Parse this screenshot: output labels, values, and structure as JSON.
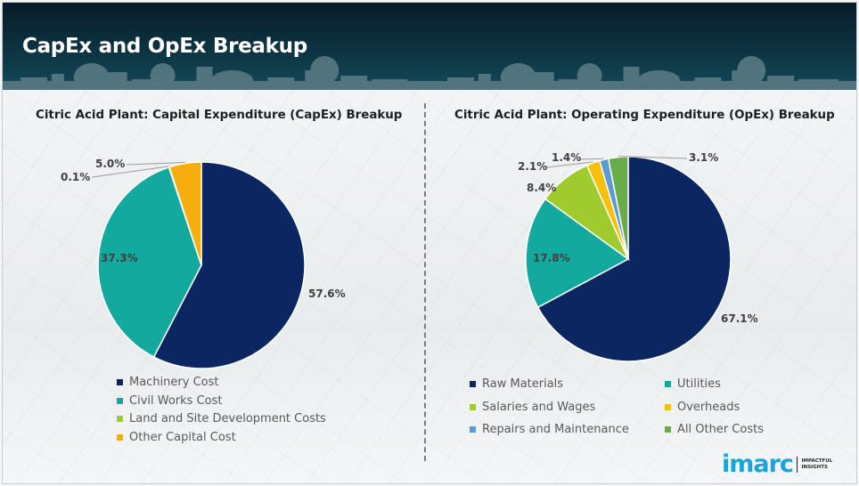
{
  "header": {
    "title": "CapEx and OpEx Breakup"
  },
  "chart_data": [
    {
      "type": "pie",
      "title": "Citric Acid Plant: Capital Expenditure (CapEx) Breakup",
      "start_angle_deg": 0,
      "direction": "clockwise",
      "order": [
        "Machinery Cost",
        "Civil Works Cost",
        "Land and Site Development Costs",
        "Other Capital Cost"
      ],
      "categories": [
        "Machinery Cost",
        "Civil Works Cost",
        "Land and Site Development Costs",
        "Other Capital Cost"
      ],
      "values": [
        57.6,
        37.3,
        0.1,
        5.0
      ],
      "labels": [
        "57.6%",
        "37.3%",
        "0.1%",
        "5.0%"
      ],
      "colors": [
        "#0b2660",
        "#14a99f",
        "#9fcb2e",
        "#f7ad0d"
      ],
      "legend_position": "bottom",
      "legend_columns": 1
    },
    {
      "type": "pie",
      "title": "Citric Acid Plant: Operating Expenditure (OpEx) Breakup",
      "start_angle_deg": 0,
      "direction": "clockwise",
      "categories": [
        "Raw Materials",
        "Utilities",
        "Salaries and Wages",
        "Overheads",
        "Repairs and Maintenance",
        "All Other Costs"
      ],
      "values": [
        67.1,
        17.8,
        8.4,
        2.1,
        1.4,
        3.1
      ],
      "labels": [
        "67.1%",
        "17.8%",
        "8.4%",
        "2.1%",
        "1.4%",
        "3.1%"
      ],
      "colors": [
        "#0b2660",
        "#14a99f",
        "#9fcb2e",
        "#f7c00d",
        "#5b9bd5",
        "#6aac4a"
      ],
      "legend_position": "bottom",
      "legend_columns": 2
    }
  ],
  "logo": {
    "word": "imarc",
    "tagline_1": "IMPACTFUL",
    "tagline_2": "INSIGHTS"
  }
}
